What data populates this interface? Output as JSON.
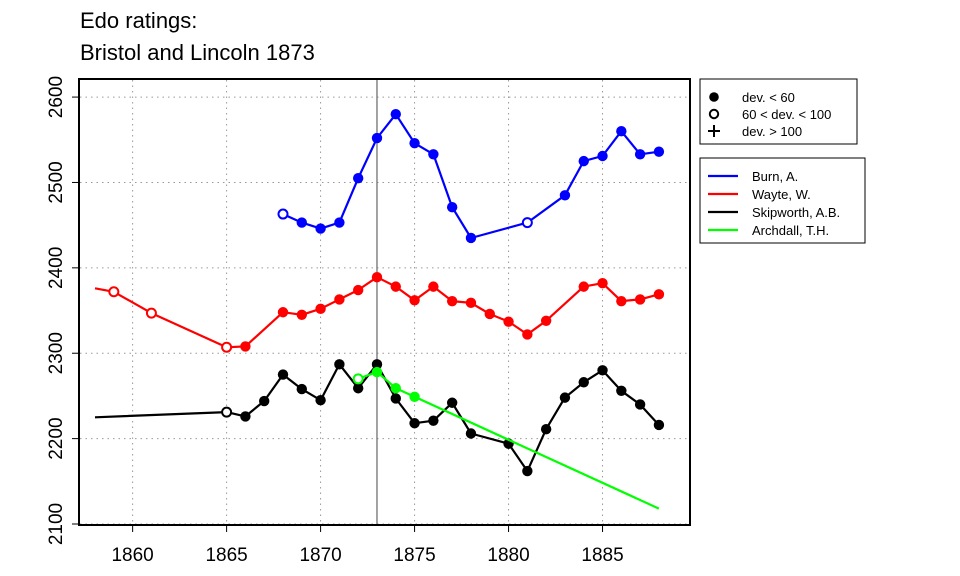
{
  "chart_data": {
    "type": "line",
    "title": [
      "Edo ratings:",
      "Bristol and Lincoln 1873"
    ],
    "xlim": [
      1857.2,
      1889.6
    ],
    "ylim": [
      2100,
      2620
    ],
    "x_ticks": [
      1860,
      1865,
      1870,
      1875,
      1880,
      1885
    ],
    "y_ticks": [
      2100,
      2200,
      2300,
      2400,
      2500,
      2600
    ],
    "grid": true,
    "reference_line_x": 1873,
    "legend_deviation": {
      "position": "top-right",
      "entries": [
        {
          "marker": "filled-circle",
          "label": "dev. < 60"
        },
        {
          "marker": "open-circle",
          "label": "60 < dev. < 100"
        },
        {
          "marker": "plus",
          "label": "dev. > 100"
        }
      ]
    },
    "series": [
      {
        "name": "Burn, A.",
        "color": "#0000ff",
        "points": [
          [
            1868,
            2463,
            "open"
          ],
          [
            1869,
            2453,
            "filled"
          ],
          [
            1870,
            2446,
            "filled"
          ],
          [
            1871,
            2453,
            "filled"
          ],
          [
            1872,
            2505,
            "filled"
          ],
          [
            1873,
            2552,
            "filled"
          ],
          [
            1874,
            2580,
            "filled"
          ],
          [
            1875,
            2546,
            "filled"
          ],
          [
            1876,
            2533,
            "filled"
          ],
          [
            1877,
            2471,
            "filled"
          ],
          [
            1878,
            2435,
            "filled"
          ],
          [
            1881,
            2453,
            "open"
          ],
          [
            1883,
            2485,
            "filled"
          ],
          [
            1884,
            2525,
            "filled"
          ],
          [
            1885,
            2531,
            "filled"
          ],
          [
            1886,
            2560,
            "filled"
          ],
          [
            1887,
            2533,
            "filled"
          ],
          [
            1888,
            2536,
            "filled"
          ]
        ]
      },
      {
        "name": "Wayte, W.",
        "color": "#ff0000",
        "points": [
          [
            1858,
            2376,
            "none"
          ],
          [
            1859,
            2372,
            "open"
          ],
          [
            1861,
            2347,
            "open"
          ],
          [
            1865,
            2307,
            "open"
          ],
          [
            1866,
            2308,
            "filled"
          ],
          [
            1868,
            2348,
            "filled"
          ],
          [
            1869,
            2345,
            "filled"
          ],
          [
            1870,
            2352,
            "filled"
          ],
          [
            1871,
            2363,
            "filled"
          ],
          [
            1872,
            2374,
            "filled"
          ],
          [
            1873,
            2389,
            "filled"
          ],
          [
            1874,
            2378,
            "filled"
          ],
          [
            1875,
            2362,
            "filled"
          ],
          [
            1876,
            2378,
            "filled"
          ],
          [
            1877,
            2361,
            "filled"
          ],
          [
            1878,
            2359,
            "filled"
          ],
          [
            1879,
            2346,
            "filled"
          ],
          [
            1880,
            2337,
            "filled"
          ],
          [
            1881,
            2322,
            "filled"
          ],
          [
            1882,
            2338,
            "filled"
          ],
          [
            1884,
            2378,
            "filled"
          ],
          [
            1885,
            2382,
            "filled"
          ],
          [
            1886,
            2361,
            "filled"
          ],
          [
            1887,
            2363,
            "filled"
          ],
          [
            1888,
            2369,
            "filled"
          ]
        ]
      },
      {
        "name": "Skipworth, A.B.",
        "color": "#000000",
        "points": [
          [
            1858,
            2225,
            "none"
          ],
          [
            1865,
            2231,
            "open"
          ],
          [
            1866,
            2226,
            "filled"
          ],
          [
            1867,
            2244,
            "filled"
          ],
          [
            1868,
            2275,
            "filled"
          ],
          [
            1869,
            2258,
            "filled"
          ],
          [
            1870,
            2245,
            "filled"
          ],
          [
            1871,
            2287,
            "filled"
          ],
          [
            1872,
            2259,
            "filled"
          ],
          [
            1873,
            2287,
            "filled"
          ],
          [
            1874,
            2247,
            "filled"
          ],
          [
            1875,
            2218,
            "filled"
          ],
          [
            1876,
            2221,
            "filled"
          ],
          [
            1877,
            2242,
            "filled"
          ],
          [
            1878,
            2206,
            "filled"
          ],
          [
            1880,
            2194,
            "filled"
          ],
          [
            1881,
            2162,
            "filled"
          ],
          [
            1882,
            2211,
            "filled"
          ],
          [
            1883,
            2248,
            "filled"
          ],
          [
            1884,
            2266,
            "filled"
          ],
          [
            1885,
            2280,
            "filled"
          ],
          [
            1886,
            2256,
            "filled"
          ],
          [
            1887,
            2240,
            "filled"
          ],
          [
            1888,
            2216,
            "filled"
          ]
        ]
      },
      {
        "name": "Archdall, T.H.",
        "color": "#00ff00",
        "points": [
          [
            1872,
            2270,
            "open"
          ],
          [
            1873,
            2278,
            "filled"
          ],
          [
            1874,
            2259,
            "filled"
          ],
          [
            1875,
            2249,
            "filled"
          ],
          [
            1888,
            2118,
            "none"
          ]
        ]
      }
    ]
  }
}
